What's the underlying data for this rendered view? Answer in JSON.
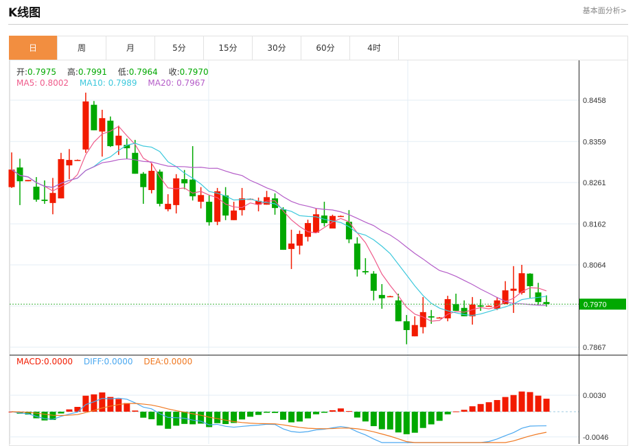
{
  "header": {
    "title": "K线图",
    "link": "基本面分析>"
  },
  "tabs": [
    "日",
    "周",
    "月",
    "5分",
    "15分",
    "30分",
    "60分",
    "4时"
  ],
  "active_tab": 0,
  "ohlc_legend": {
    "open_label": "开:",
    "open": "0.7975",
    "high_label": "高:",
    "high": "0.7991",
    "low_label": "低:",
    "low": "0.7964",
    "close_label": "收:",
    "close": "0.7970"
  },
  "ma_legend": {
    "ma5": "MA5: 0.8002",
    "ma10": "MA10: 0.7989",
    "ma20": "MA20: 0.7967"
  },
  "macd_legend": {
    "macd": "MACD:0.0000",
    "diff": "DIFF:0.0000",
    "dea": "DEA:0.0000"
  },
  "colors": {
    "up": "#f21b00",
    "down": "#00a800",
    "ma5": "#ef5a8a",
    "ma10": "#3cc8dc",
    "ma20": "#b45cc8",
    "diff": "#4aa8f0",
    "dea": "#f07820",
    "accent": "#f28e40"
  },
  "chart_data": {
    "type": "candlestick",
    "price_ticks": [
      "0.8458",
      "0.8359",
      "0.8261",
      "0.8162",
      "0.8064",
      "0.7867"
    ],
    "current_price": "0.7970",
    "macd_ticks": [
      "0.0030",
      "-0.0046"
    ],
    "ylim": [
      0.7867,
      0.8458
    ],
    "candles": [
      [
        0.825,
        0.8333,
        0.8248,
        0.8292
      ],
      [
        0.8297,
        0.8318,
        0.8207,
        0.8264
      ],
      [
        0.8264,
        0.8267,
        0.8264,
        0.8267
      ],
      [
        0.8251,
        0.8274,
        0.8215,
        0.822
      ],
      [
        0.822,
        0.8266,
        0.821,
        0.8217
      ],
      [
        0.8212,
        0.8272,
        0.8185,
        0.8236
      ],
      [
        0.8223,
        0.8332,
        0.8223,
        0.8317
      ],
      [
        0.8302,
        0.8341,
        0.8269,
        0.8315
      ],
      [
        0.8315,
        0.8316,
        0.8314,
        0.8315
      ],
      [
        0.834,
        0.8476,
        0.8332,
        0.8455
      ],
      [
        0.8447,
        0.8456,
        0.8386,
        0.8386
      ],
      [
        0.8383,
        0.8435,
        0.8323,
        0.8415
      ],
      [
        0.8409,
        0.8419,
        0.8346,
        0.8348
      ],
      [
        0.835,
        0.8397,
        0.8327,
        0.8373
      ],
      [
        0.8351,
        0.8366,
        0.8318,
        0.8343
      ],
      [
        0.8332,
        0.8363,
        0.8282,
        0.8282
      ],
      [
        0.8282,
        0.8286,
        0.821,
        0.825
      ],
      [
        0.8243,
        0.8307,
        0.8235,
        0.8289
      ],
      [
        0.8287,
        0.8292,
        0.8204,
        0.821
      ],
      [
        0.8197,
        0.8233,
        0.8192,
        0.821
      ],
      [
        0.8207,
        0.8281,
        0.8187,
        0.8271
      ],
      [
        0.8269,
        0.8291,
        0.8245,
        0.8259
      ],
      [
        0.8268,
        0.8348,
        0.8218,
        0.8228
      ],
      [
        0.8215,
        0.825,
        0.8199,
        0.8231
      ],
      [
        0.8215,
        0.823,
        0.8158,
        0.8166
      ],
      [
        0.8167,
        0.8248,
        0.8159,
        0.824
      ],
      [
        0.823,
        0.825,
        0.8171,
        0.8182
      ],
      [
        0.8171,
        0.8215,
        0.8171,
        0.8194
      ],
      [
        0.8195,
        0.8248,
        0.8182,
        0.8223
      ],
      [
        0.8221,
        0.8223,
        0.822,
        0.8222
      ],
      [
        0.8208,
        0.8225,
        0.8192,
        0.8217
      ],
      [
        0.8208,
        0.8241,
        0.8208,
        0.8226
      ],
      [
        0.8223,
        0.8235,
        0.8184,
        0.82
      ],
      [
        0.8197,
        0.8202,
        0.81,
        0.81
      ],
      [
        0.8102,
        0.8148,
        0.8054,
        0.8115
      ],
      [
        0.811,
        0.8146,
        0.8089,
        0.8138
      ],
      [
        0.8131,
        0.8172,
        0.812,
        0.8164
      ],
      [
        0.8141,
        0.8199,
        0.8141,
        0.8185
      ],
      [
        0.8182,
        0.8215,
        0.8156,
        0.8164
      ],
      [
        0.8151,
        0.8184,
        0.8151,
        0.8181
      ],
      [
        0.818,
        0.8182,
        0.818,
        0.8181
      ],
      [
        0.8167,
        0.8195,
        0.8116,
        0.8125
      ],
      [
        0.8115,
        0.813,
        0.8036,
        0.8053
      ],
      [
        0.8049,
        0.808,
        0.8041,
        0.8046
      ],
      [
        0.8043,
        0.8049,
        0.7979,
        0.8002
      ],
      [
        0.7992,
        0.8018,
        0.7959,
        0.7984
      ],
      [
        0.7988,
        0.799,
        0.7988,
        0.7989
      ],
      [
        0.7979,
        0.7995,
        0.7929,
        0.7929
      ],
      [
        0.7929,
        0.7944,
        0.7874,
        0.7908
      ],
      [
        0.7893,
        0.7941,
        0.7893,
        0.792
      ],
      [
        0.7915,
        0.7987,
        0.79,
        0.7951
      ],
      [
        0.7941,
        0.7956,
        0.7923,
        0.7938
      ],
      [
        0.7937,
        0.7939,
        0.7937,
        0.7938
      ],
      [
        0.7936,
        0.799,
        0.7929,
        0.7982
      ],
      [
        0.797,
        0.7995,
        0.7954,
        0.7954
      ],
      [
        0.7961,
        0.7979,
        0.7941,
        0.7941
      ],
      [
        0.7941,
        0.7987,
        0.7921,
        0.7969
      ],
      [
        0.7967,
        0.7982,
        0.7954,
        0.7964
      ],
      [
        0.7965,
        0.7967,
        0.7965,
        0.7966
      ],
      [
        0.7959,
        0.7987,
        0.7956,
        0.7979
      ],
      [
        0.797,
        0.8025,
        0.797,
        0.8003
      ],
      [
        0.8002,
        0.8061,
        0.7949,
        0.8007
      ],
      [
        0.7997,
        0.8064,
        0.7993,
        0.8044
      ],
      [
        0.8043,
        0.8044,
        0.7985,
        0.8013
      ],
      [
        0.7998,
        0.8021,
        0.7967,
        0.7975
      ],
      [
        0.7975,
        0.7991,
        0.7964,
        0.797
      ]
    ]
  }
}
